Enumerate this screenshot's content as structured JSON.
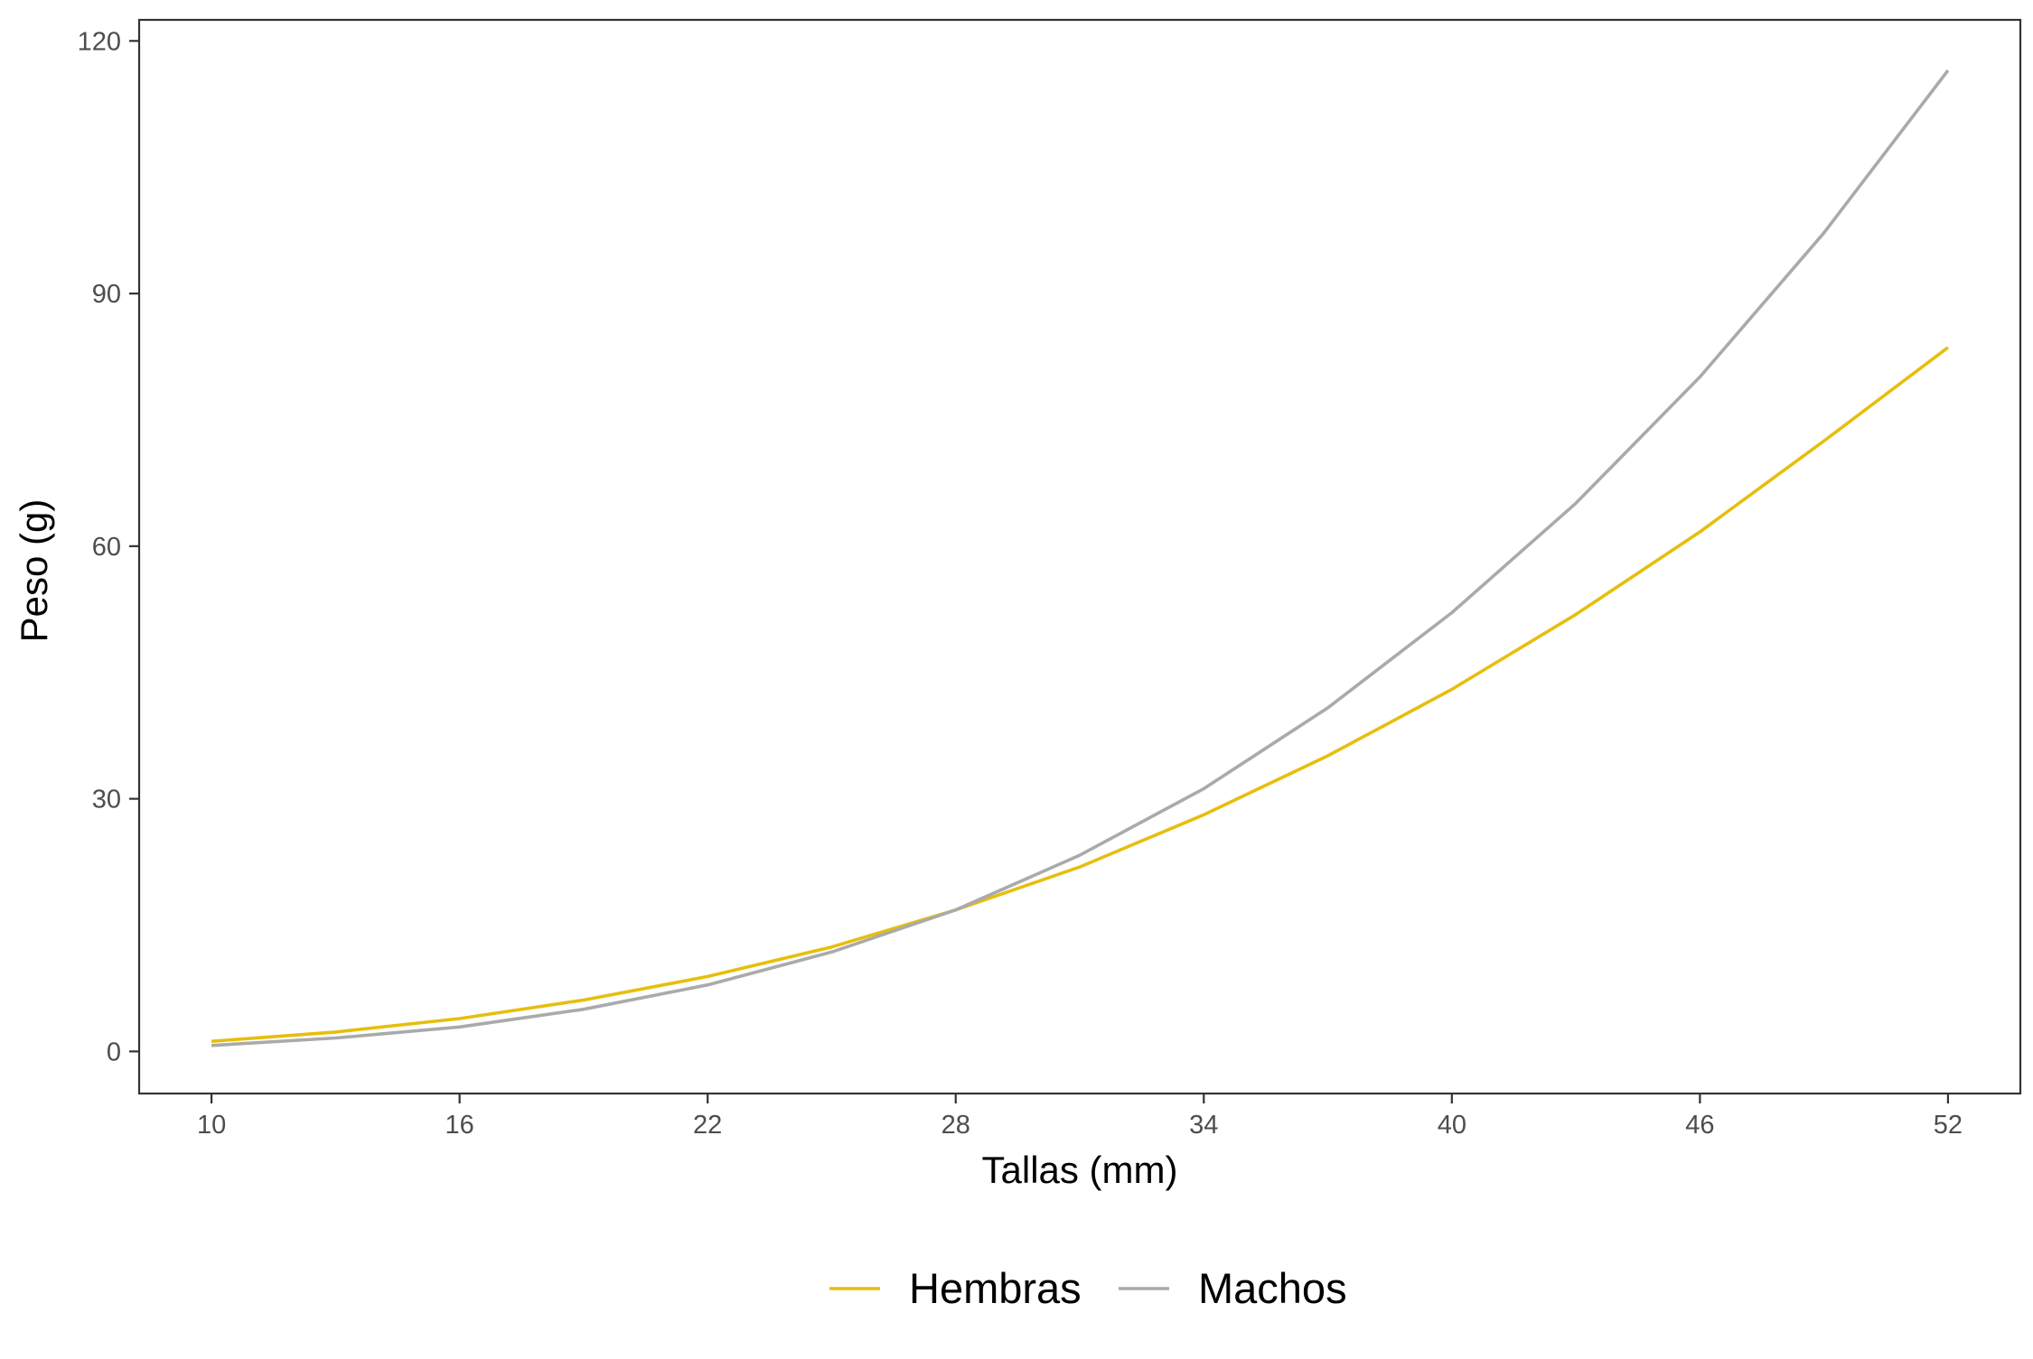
{
  "chart_data": {
    "type": "line",
    "title": "",
    "xlabel": "Tallas (mm)",
    "ylabel": "Peso (g)",
    "xlim": [
      8.25,
      53.75
    ],
    "ylim": [
      -5,
      122.5
    ],
    "x_ticks": [
      10,
      16,
      22,
      28,
      34,
      40,
      46,
      52
    ],
    "y_ticks": [
      0,
      30,
      60,
      90,
      120
    ],
    "x_tick_labels": [
      "10",
      "16",
      "22",
      "28",
      "34",
      "40",
      "46",
      "52"
    ],
    "y_tick_labels": [
      "0",
      "30",
      "60",
      "90",
      "120"
    ],
    "grid": false,
    "legend_position": "bottom",
    "x": [
      10,
      13,
      16,
      19,
      22,
      25,
      28,
      31,
      34,
      37,
      40,
      43,
      46,
      49,
      52
    ],
    "series": [
      {
        "name": "Hembras",
        "color": "#E7BE0D",
        "values": [
          1.2,
          2.3,
          3.9,
          6.1,
          8.9,
          12.4,
          16.8,
          21.9,
          28.1,
          35.1,
          43.0,
          51.9,
          61.7,
          72.5,
          83.6
        ]
      },
      {
        "name": "Machos",
        "color": "#AAAAAA",
        "values": [
          0.7,
          1.6,
          2.9,
          5.0,
          7.9,
          11.8,
          16.8,
          23.3,
          31.2,
          40.8,
          52.1,
          65.1,
          80.1,
          97.2,
          116.5
        ]
      }
    ]
  }
}
